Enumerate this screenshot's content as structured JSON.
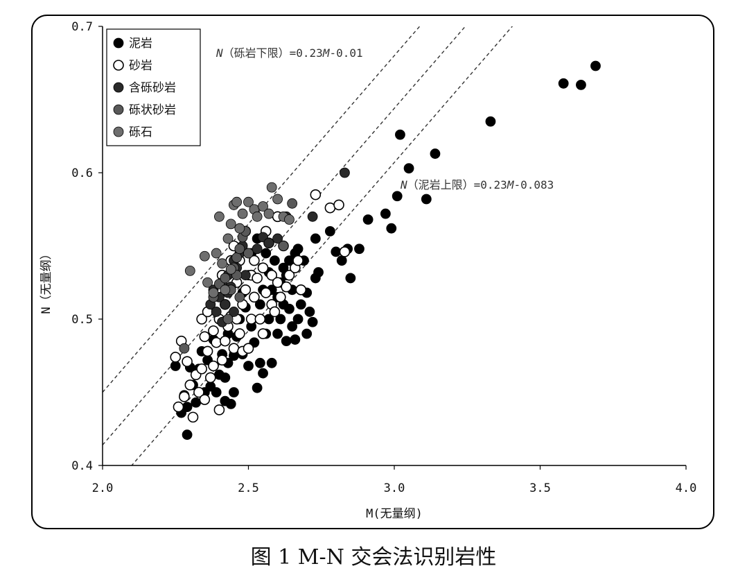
{
  "figure_caption": "图 1 M-N 交会法识别岩性",
  "colors": {
    "mudstone": "#000000",
    "sandstone": "#ffffff",
    "pebbly_sandstone": "#2a2a2a",
    "conglomeratic_sandstone": "#595959",
    "conglomerate": "#6e6e6e",
    "line": "#333333"
  },
  "chart_data": {
    "type": "scatter",
    "xlabel": "M(无量纲)",
    "ylabel": "N（无量纲）",
    "xlim": [
      2.0,
      4.0
    ],
    "ylim": [
      0.4,
      0.7
    ],
    "x_ticks": [
      "2.0",
      "2.5",
      "3.0",
      "3.5",
      "4.0"
    ],
    "y_ticks": [
      "0.4",
      "0.5",
      "0.6",
      "0.7"
    ],
    "grid": false,
    "legend_position": "top-left",
    "annotations": [
      {
        "parts": [
          {
            "text": "N",
            "italic": true
          },
          {
            "text": "（砾岩下限）=0.23"
          },
          {
            "text": "M",
            "italic": true
          },
          {
            "text": "-0.01"
          }
        ]
      },
      {
        "parts": [
          {
            "text": "N",
            "italic": true
          },
          {
            "text": "（泥岩上限）=0.23"
          },
          {
            "text": "M",
            "italic": true
          },
          {
            "text": "-0.083"
          }
        ]
      }
    ],
    "lines": [
      {
        "slope": 0.23,
        "intercept": -0.01
      },
      {
        "slope": 0.23,
        "intercept": -0.046
      },
      {
        "slope": 0.23,
        "intercept": -0.083
      }
    ],
    "series": [
      {
        "name": "泥岩",
        "key": "mudstone",
        "points": [
          [
            2.25,
            0.468
          ],
          [
            2.27,
            0.436
          ],
          [
            2.28,
            0.448
          ],
          [
            2.29,
            0.44
          ],
          [
            2.29,
            0.421
          ],
          [
            2.3,
            0.467
          ],
          [
            2.31,
            0.455
          ],
          [
            2.32,
            0.443
          ],
          [
            2.33,
            0.466
          ],
          [
            2.34,
            0.478
          ],
          [
            2.35,
            0.45
          ],
          [
            2.36,
            0.472
          ],
          [
            2.37,
            0.454
          ],
          [
            2.38,
            0.486
          ],
          [
            2.39,
            0.45
          ],
          [
            2.4,
            0.462
          ],
          [
            2.41,
            0.476
          ],
          [
            2.42,
            0.46
          ],
          [
            2.42,
            0.444
          ],
          [
            2.43,
            0.47
          ],
          [
            2.43,
            0.49
          ],
          [
            2.44,
            0.442
          ],
          [
            2.45,
            0.45
          ],
          [
            2.45,
            0.475
          ],
          [
            2.46,
            0.488
          ],
          [
            2.47,
            0.5
          ],
          [
            2.48,
            0.476
          ],
          [
            2.48,
            0.518
          ],
          [
            2.49,
            0.508
          ],
          [
            2.5,
            0.53
          ],
          [
            2.5,
            0.468
          ],
          [
            2.51,
            0.495
          ],
          [
            2.51,
            0.545
          ],
          [
            2.52,
            0.484
          ],
          [
            2.53,
            0.453
          ],
          [
            2.53,
            0.555
          ],
          [
            2.54,
            0.51
          ],
          [
            2.54,
            0.47
          ],
          [
            2.55,
            0.52
          ],
          [
            2.55,
            0.463
          ],
          [
            2.56,
            0.49
          ],
          [
            2.56,
            0.545
          ],
          [
            2.57,
            0.5
          ],
          [
            2.57,
            0.532
          ],
          [
            2.58,
            0.52
          ],
          [
            2.58,
            0.47
          ],
          [
            2.59,
            0.505
          ],
          [
            2.59,
            0.54
          ],
          [
            2.6,
            0.49
          ],
          [
            2.6,
            0.515
          ],
          [
            2.61,
            0.525
          ],
          [
            2.61,
            0.5
          ],
          [
            2.62,
            0.51
          ],
          [
            2.62,
            0.535
          ],
          [
            2.63,
            0.485
          ],
          [
            2.63,
            0.53
          ],
          [
            2.64,
            0.507
          ],
          [
            2.64,
            0.54
          ],
          [
            2.65,
            0.52
          ],
          [
            2.65,
            0.495
          ],
          [
            2.66,
            0.486
          ],
          [
            2.66,
            0.545
          ],
          [
            2.67,
            0.548
          ],
          [
            2.67,
            0.5
          ],
          [
            2.68,
            0.51
          ],
          [
            2.69,
            0.54
          ],
          [
            2.7,
            0.49
          ],
          [
            2.7,
            0.518
          ],
          [
            2.71,
            0.505
          ],
          [
            2.72,
            0.498
          ],
          [
            2.73,
            0.555
          ],
          [
            2.73,
            0.528
          ],
          [
            2.74,
            0.532
          ],
          [
            2.78,
            0.56
          ],
          [
            2.8,
            0.546
          ],
          [
            2.82,
            0.54
          ],
          [
            2.84,
            0.548
          ],
          [
            2.85,
            0.528
          ],
          [
            2.88,
            0.548
          ],
          [
            2.91,
            0.568
          ],
          [
            2.97,
            0.572
          ],
          [
            2.99,
            0.562
          ],
          [
            3.01,
            0.584
          ],
          [
            3.02,
            0.626
          ],
          [
            3.05,
            0.603
          ],
          [
            3.11,
            0.582
          ],
          [
            3.14,
            0.613
          ],
          [
            3.33,
            0.635
          ],
          [
            3.58,
            0.661
          ],
          [
            3.64,
            0.66
          ],
          [
            3.69,
            0.673
          ]
        ]
      },
      {
        "name": "砂岩",
        "key": "sandstone",
        "points": [
          [
            2.25,
            0.474
          ],
          [
            2.26,
            0.44
          ],
          [
            2.27,
            0.485
          ],
          [
            2.28,
            0.447
          ],
          [
            2.29,
            0.471
          ],
          [
            2.3,
            0.455
          ],
          [
            2.31,
            0.433
          ],
          [
            2.32,
            0.462
          ],
          [
            2.33,
            0.45
          ],
          [
            2.34,
            0.466
          ],
          [
            2.34,
            0.5
          ],
          [
            2.35,
            0.488
          ],
          [
            2.35,
            0.445
          ],
          [
            2.36,
            0.505
          ],
          [
            2.36,
            0.478
          ],
          [
            2.37,
            0.46
          ],
          [
            2.38,
            0.492
          ],
          [
            2.38,
            0.468
          ],
          [
            2.39,
            0.52
          ],
          [
            2.39,
            0.484
          ],
          [
            2.4,
            0.438
          ],
          [
            2.4,
            0.5
          ],
          [
            2.41,
            0.53
          ],
          [
            2.41,
            0.472
          ],
          [
            2.42,
            0.51
          ],
          [
            2.42,
            0.485
          ],
          [
            2.43,
            0.52
          ],
          [
            2.43,
            0.495
          ],
          [
            2.44,
            0.54
          ],
          [
            2.44,
            0.502
          ],
          [
            2.45,
            0.55
          ],
          [
            2.45,
            0.48
          ],
          [
            2.46,
            0.525
          ],
          [
            2.46,
            0.5
          ],
          [
            2.47,
            0.54
          ],
          [
            2.47,
            0.49
          ],
          [
            2.48,
            0.51
          ],
          [
            2.48,
            0.478
          ],
          [
            2.49,
            0.56
          ],
          [
            2.49,
            0.52
          ],
          [
            2.5,
            0.48
          ],
          [
            2.51,
            0.53
          ],
          [
            2.51,
            0.5
          ],
          [
            2.52,
            0.54
          ],
          [
            2.52,
            0.515
          ],
          [
            2.53,
            0.528
          ],
          [
            2.54,
            0.5
          ],
          [
            2.55,
            0.49
          ],
          [
            2.55,
            0.535
          ],
          [
            2.56,
            0.56
          ],
          [
            2.56,
            0.518
          ],
          [
            2.57,
            0.552
          ],
          [
            2.58,
            0.53
          ],
          [
            2.58,
            0.51
          ],
          [
            2.59,
            0.505
          ],
          [
            2.6,
            0.57
          ],
          [
            2.6,
            0.525
          ],
          [
            2.61,
            0.515
          ],
          [
            2.62,
            0.55
          ],
          [
            2.63,
            0.522
          ],
          [
            2.64,
            0.53
          ],
          [
            2.66,
            0.535
          ],
          [
            2.67,
            0.54
          ],
          [
            2.68,
            0.52
          ],
          [
            2.73,
            0.585
          ],
          [
            2.78,
            0.576
          ],
          [
            2.81,
            0.578
          ],
          [
            2.83,
            0.546
          ]
        ]
      },
      {
        "name": "含砾砂岩",
        "key": "pebbly_sandstone",
        "points": [
          [
            2.37,
            0.51
          ],
          [
            2.38,
            0.52
          ],
          [
            2.39,
            0.505
          ],
          [
            2.4,
            0.515
          ],
          [
            2.41,
            0.525
          ],
          [
            2.41,
            0.498
          ],
          [
            2.42,
            0.51
          ],
          [
            2.43,
            0.53
          ],
          [
            2.43,
            0.518
          ],
          [
            2.44,
            0.522
          ],
          [
            2.45,
            0.54
          ],
          [
            2.45,
            0.505
          ],
          [
            2.46,
            0.535
          ],
          [
            2.47,
            0.545
          ],
          [
            2.48,
            0.55
          ],
          [
            2.49,
            0.53
          ],
          [
            2.5,
            0.545
          ],
          [
            2.53,
            0.548
          ],
          [
            2.55,
            0.556
          ],
          [
            2.57,
            0.552
          ],
          [
            2.6,
            0.555
          ],
          [
            2.63,
            0.57
          ],
          [
            2.72,
            0.57
          ],
          [
            2.83,
            0.6
          ]
        ]
      },
      {
        "name": "砾状砂岩",
        "key": "conglomeratic_sandstone",
        "points": [
          [
            2.28,
            0.48
          ],
          [
            2.38,
            0.515
          ],
          [
            2.4,
            0.524
          ],
          [
            2.42,
            0.528
          ],
          [
            2.43,
            0.5
          ],
          [
            2.44,
            0.52
          ],
          [
            2.45,
            0.535
          ],
          [
            2.46,
            0.542
          ],
          [
            2.47,
            0.548
          ],
          [
            2.48,
            0.556
          ],
          [
            2.49,
            0.56
          ],
          [
            2.46,
            0.53
          ],
          [
            2.5,
            0.545
          ],
          [
            2.47,
            0.515
          ],
          [
            2.65,
            0.579
          ],
          [
            2.62,
            0.55
          ]
        ]
      },
      {
        "name": "砾石",
        "key": "conglomerate",
        "points": [
          [
            2.3,
            0.533
          ],
          [
            2.35,
            0.543
          ],
          [
            2.36,
            0.525
          ],
          [
            2.38,
            0.518
          ],
          [
            2.39,
            0.545
          ],
          [
            2.4,
            0.57
          ],
          [
            2.41,
            0.538
          ],
          [
            2.43,
            0.555
          ],
          [
            2.44,
            0.565
          ],
          [
            2.45,
            0.578
          ],
          [
            2.46,
            0.58
          ],
          [
            2.47,
            0.562
          ],
          [
            2.48,
            0.572
          ],
          [
            2.5,
            0.58
          ],
          [
            2.52,
            0.575
          ],
          [
            2.53,
            0.57
          ],
          [
            2.55,
            0.577
          ],
          [
            2.57,
            0.572
          ],
          [
            2.58,
            0.59
          ],
          [
            2.6,
            0.582
          ],
          [
            2.62,
            0.57
          ],
          [
            2.64,
            0.568
          ],
          [
            2.44,
            0.534
          ],
          [
            2.42,
            0.52
          ]
        ]
      }
    ]
  }
}
